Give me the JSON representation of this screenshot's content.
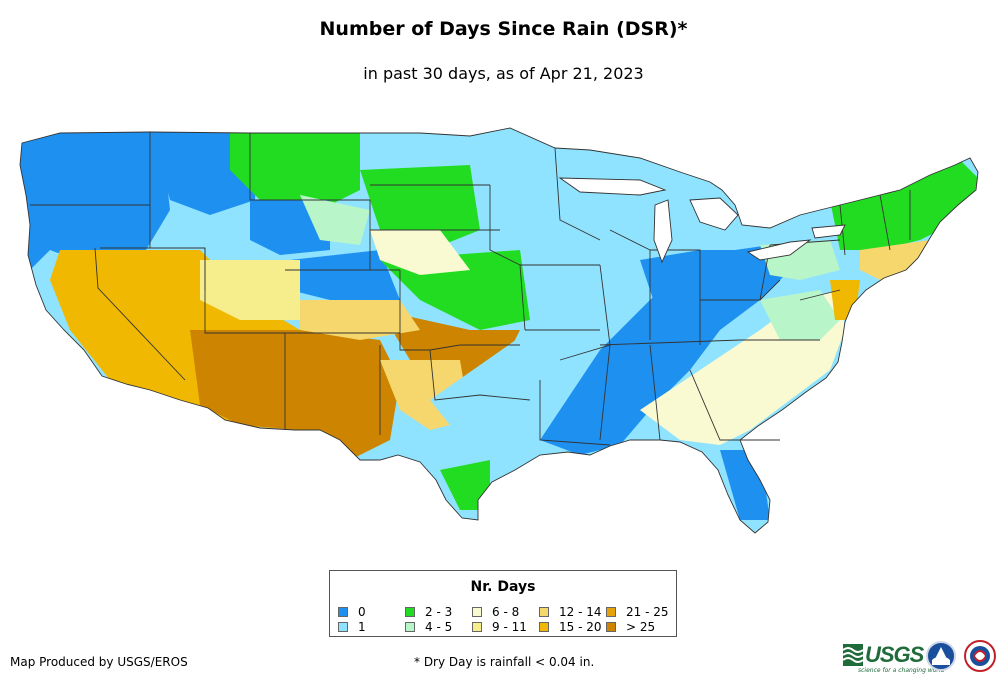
{
  "title": "Number of Days Since Rain (DSR)*",
  "subtitle": "in past 30 days, as of Apr 21, 2023",
  "legend": {
    "title": "Nr. Days",
    "items": [
      {
        "label": "0",
        "color": "#1e90f0"
      },
      {
        "label": "1",
        "color": "#8fe3ff"
      },
      {
        "label": "2 - 3",
        "color": "#22dc22"
      },
      {
        "label": "4 - 5",
        "color": "#b8f5c8"
      },
      {
        "label": "6 - 8",
        "color": "#fafad2"
      },
      {
        "label": "9 - 11",
        "color": "#f6ee8c"
      },
      {
        "label": "12 - 14",
        "color": "#f5d76e"
      },
      {
        "label": "15 - 20",
        "color": "#f0b800"
      },
      {
        "label": "21 - 25",
        "color": "#e6a20a"
      },
      {
        "label": "> 25",
        "color": "#cd8400"
      }
    ]
  },
  "footer": {
    "credit": "Map Produced by USGS/EROS",
    "note": "* Dry Day is rainfall < 0.04 in."
  },
  "logos": {
    "usgs": "USGS",
    "usgs_tagline": "science for a changing world",
    "noaa": "noaa",
    "nws": "NATIONAL WEATHER SERVICE"
  }
}
